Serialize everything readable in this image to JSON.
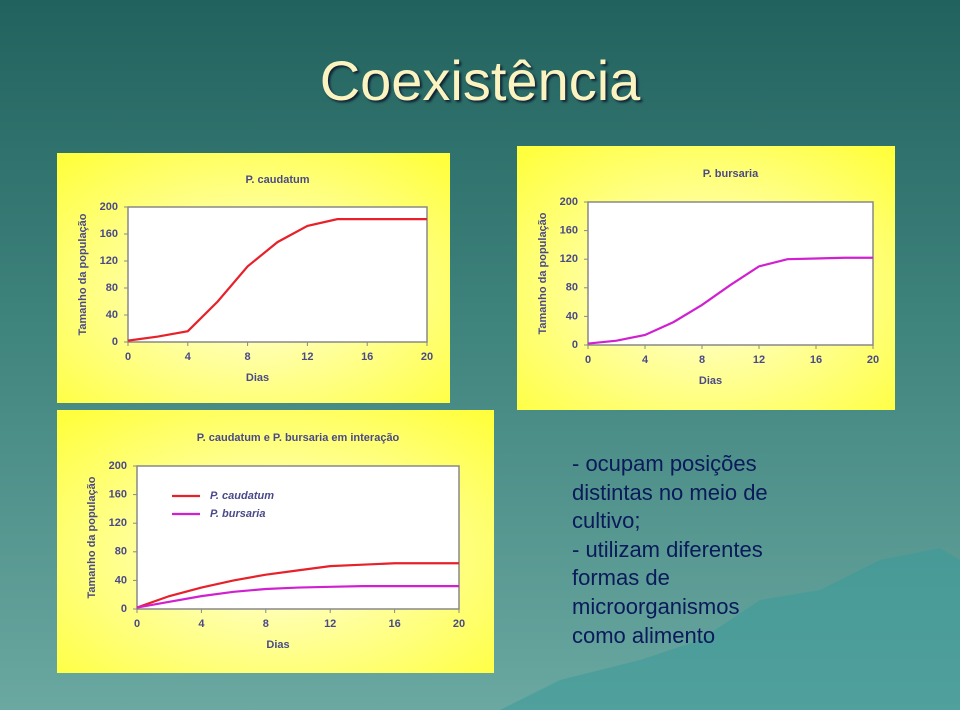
{
  "slide": {
    "title": "Coexistência",
    "text": [
      "- ocupam posições",
      "distintas no meio de",
      "cultivo;",
      "- utilizam diferentes",
      "formas de",
      "microorganismos",
      "como alimento"
    ]
  },
  "chart_data": [
    {
      "type": "line",
      "title": "P. caudatum",
      "xlabel": "Dias",
      "ylabel": "Tamanho da população",
      "x": [
        0,
        2,
        4,
        6,
        8,
        10,
        12,
        14,
        16,
        18,
        20
      ],
      "values": [
        2,
        8,
        16,
        60,
        112,
        148,
        172,
        182,
        182,
        182,
        182
      ],
      "color": "#e8202a",
      "xlim": [
        0,
        20
      ],
      "xticks": [
        0,
        4,
        8,
        12,
        16,
        20
      ],
      "ylim": [
        0,
        200
      ],
      "yticks": [
        0,
        40,
        80,
        120,
        160,
        200
      ]
    },
    {
      "type": "line",
      "title": "P. bursaria",
      "xlabel": "Dias",
      "ylabel": "Tamanho da população",
      "x": [
        0,
        2,
        4,
        6,
        8,
        10,
        12,
        14,
        16,
        18,
        20
      ],
      "values": [
        2,
        6,
        14,
        32,
        56,
        84,
        110,
        120,
        121,
        122,
        122
      ],
      "color": "#d020d0",
      "xlim": [
        0,
        20
      ],
      "xticks": [
        0,
        4,
        8,
        12,
        16,
        20
      ],
      "ylim": [
        0,
        200
      ],
      "yticks": [
        0,
        40,
        80,
        120,
        160,
        200
      ]
    },
    {
      "type": "line",
      "title": "P. caudatum e P. bursaria em interação",
      "xlabel": "Dias",
      "ylabel": "Tamanho da população",
      "x": [
        0,
        2,
        4,
        6,
        8,
        10,
        12,
        14,
        16,
        18,
        20
      ],
      "series": [
        {
          "name": "P. caudatum",
          "color": "#e8202a",
          "values": [
            2,
            18,
            30,
            40,
            48,
            54,
            60,
            62,
            64,
            64,
            64
          ]
        },
        {
          "name": "P. bursaria",
          "color": "#d020d0",
          "values": [
            2,
            10,
            18,
            24,
            28,
            30,
            31,
            32,
            32,
            32,
            32
          ]
        }
      ],
      "legend": "upper left",
      "xlim": [
        0,
        20
      ],
      "xticks": [
        0,
        4,
        8,
        12,
        16,
        20
      ],
      "ylim": [
        0,
        200
      ],
      "yticks": [
        0,
        40,
        80,
        120,
        160,
        200
      ]
    }
  ]
}
